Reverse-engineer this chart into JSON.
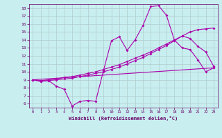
{
  "bg_color": "#c8eef0",
  "line_color": "#aa00aa",
  "grid_color": "#b0cccc",
  "xlim": [
    -0.5,
    23.5
  ],
  "ylim": [
    5.5,
    18.5
  ],
  "xticks": [
    0,
    1,
    2,
    3,
    4,
    5,
    6,
    7,
    8,
    9,
    10,
    11,
    12,
    13,
    14,
    15,
    16,
    17,
    18,
    19,
    20,
    21,
    22,
    23
  ],
  "yticks": [
    6,
    7,
    8,
    9,
    10,
    11,
    12,
    13,
    14,
    15,
    16,
    17,
    18
  ],
  "xlabel": "Windchill (Refroidissement éolien,°C)",
  "line1_x": [
    0,
    1,
    2,
    3,
    4,
    5,
    6,
    7,
    8,
    9,
    10,
    11,
    12,
    13,
    14,
    15,
    16,
    17,
    18,
    19,
    20,
    21,
    22,
    23
  ],
  "line1_y": [
    9.0,
    8.8,
    8.9,
    8.2,
    7.8,
    5.7,
    6.3,
    6.4,
    6.3,
    10.2,
    13.9,
    14.4,
    12.7,
    14.0,
    15.8,
    18.2,
    18.3,
    17.1,
    14.0,
    13.0,
    12.8,
    11.5,
    10.0,
    10.5
  ],
  "line2_x": [
    0,
    1,
    2,
    3,
    4,
    5,
    6,
    7,
    8,
    9,
    10,
    11,
    12,
    13,
    14,
    15,
    16,
    17,
    18,
    19,
    20,
    21,
    22,
    23
  ],
  "line2_y": [
    9.0,
    8.9,
    9.0,
    9.1,
    9.3,
    9.4,
    9.6,
    9.8,
    10.0,
    10.3,
    10.6,
    10.9,
    11.3,
    11.7,
    12.1,
    12.5,
    13.0,
    13.5,
    14.0,
    14.5,
    14.2,
    13.2,
    12.5,
    10.7
  ],
  "line3_x": [
    0,
    1,
    2,
    3,
    4,
    5,
    6,
    7,
    8,
    9,
    10,
    11,
    12,
    13,
    14,
    15,
    16,
    17,
    18,
    19,
    20,
    21,
    22,
    23
  ],
  "line3_y": [
    9.0,
    8.8,
    8.9,
    9.0,
    9.1,
    9.2,
    9.4,
    9.6,
    9.8,
    10.0,
    10.3,
    10.6,
    11.0,
    11.4,
    11.8,
    12.3,
    12.8,
    13.3,
    13.9,
    14.5,
    15.0,
    15.3,
    15.4,
    15.5
  ],
  "line4_x": [
    0,
    23
  ],
  "line4_y": [
    9.0,
    10.5
  ],
  "marker": "D",
  "marker_size": 2.0,
  "linewidth": 0.8
}
